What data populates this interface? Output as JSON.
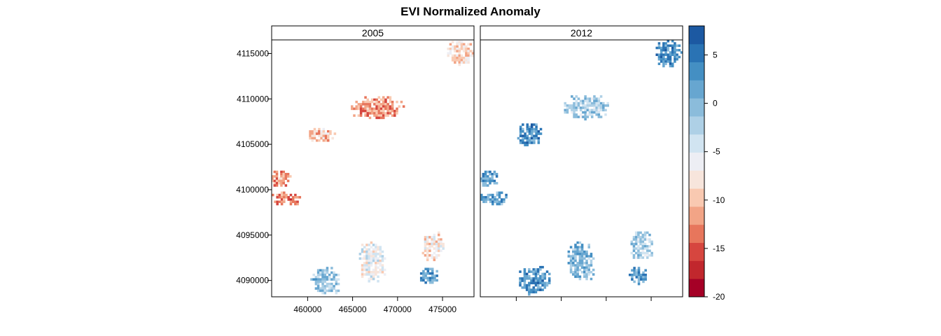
{
  "chart_data": {
    "type": "heatmap",
    "title": "EVI Normalized Anomaly",
    "panels": [
      {
        "name": "2005"
      },
      {
        "name": "2012"
      }
    ],
    "xlim": [
      456000,
      478500
    ],
    "ylim": [
      4088200,
      4116500
    ],
    "x_ticks": [
      460000,
      465000,
      470000,
      475000
    ],
    "x_tick_labels": [
      "460000",
      "465000",
      "470000",
      "475000"
    ],
    "y_ticks": [
      4090000,
      4095000,
      4100000,
      4105000,
      4110000,
      4115000
    ],
    "y_tick_labels": [
      "4090000",
      "4095000",
      "4100000",
      "4105000",
      "4110000",
      "4115000"
    ],
    "colorbar": {
      "range": [
        -20,
        8
      ],
      "ticks": [
        5,
        0,
        -5,
        -10,
        -15,
        -20
      ],
      "tick_labels": [
        "5",
        "0",
        "-5",
        "-10",
        "-15",
        "-20"
      ],
      "colors": [
        "#a50026",
        "#c1272d",
        "#d6463f",
        "#e7765c",
        "#f2a486",
        "#f9c9b1",
        "#f7e5dc",
        "#edeef4",
        "#d1e4f1",
        "#aed0e6",
        "#8bbcdb",
        "#67a6d0",
        "#448fc3",
        "#2a73b4",
        "#1c59a2"
      ]
    },
    "patches": [
      {
        "panel": "2005",
        "x": 477000,
        "y": 4115000,
        "w": 3000,
        "h": 2800,
        "value": -9
      },
      {
        "panel": "2005",
        "x": 467800,
        "y": 4109000,
        "w": 6000,
        "h": 2600,
        "value": -12
      },
      {
        "panel": "2005",
        "x": 461500,
        "y": 4106000,
        "w": 3200,
        "h": 1600,
        "value": -10
      },
      {
        "panel": "2005",
        "x": 457000,
        "y": 4101200,
        "w": 2600,
        "h": 1800,
        "value": -12
      },
      {
        "panel": "2005",
        "x": 457600,
        "y": 4099000,
        "w": 3200,
        "h": 1600,
        "value": -13
      },
      {
        "panel": "2005",
        "x": 462000,
        "y": 4090000,
        "w": 3400,
        "h": 3000,
        "value": -1
      },
      {
        "panel": "2005",
        "x": 467200,
        "y": 4092000,
        "w": 3000,
        "h": 4600,
        "value": -6
      },
      {
        "panel": "2005",
        "x": 474000,
        "y": 4093800,
        "w": 2600,
        "h": 3200,
        "value": -8
      },
      {
        "panel": "2005",
        "x": 473500,
        "y": 4090500,
        "w": 2000,
        "h": 1800,
        "value": 2
      },
      {
        "panel": "2012",
        "x": 477000,
        "y": 4115000,
        "w": 3000,
        "h": 3000,
        "value": 3
      },
      {
        "panel": "2012",
        "x": 467800,
        "y": 4109000,
        "w": 5000,
        "h": 2800,
        "value": -2
      },
      {
        "panel": "2012",
        "x": 461500,
        "y": 4106000,
        "w": 2800,
        "h": 2600,
        "value": 3
      },
      {
        "panel": "2012",
        "x": 457000,
        "y": 4101200,
        "w": 2600,
        "h": 1800,
        "value": 2
      },
      {
        "panel": "2012",
        "x": 457600,
        "y": 4099000,
        "w": 3200,
        "h": 1600,
        "value": 2
      },
      {
        "panel": "2012",
        "x": 462000,
        "y": 4090000,
        "w": 3400,
        "h": 3200,
        "value": 3
      },
      {
        "panel": "2012",
        "x": 467200,
        "y": 4092000,
        "w": 3000,
        "h": 4600,
        "value": 0
      },
      {
        "panel": "2012",
        "x": 474000,
        "y": 4093800,
        "w": 2600,
        "h": 3200,
        "value": -2
      },
      {
        "panel": "2012",
        "x": 473500,
        "y": 4090500,
        "w": 2000,
        "h": 2000,
        "value": 2
      }
    ]
  }
}
